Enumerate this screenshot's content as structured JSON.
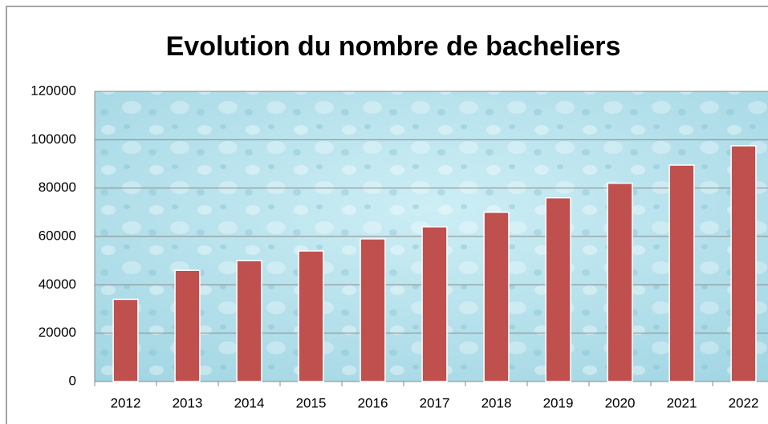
{
  "chart_data": {
    "type": "bar",
    "title": "Evolution du nombre de bacheliers",
    "categories": [
      "2012",
      "2013",
      "2014",
      "2015",
      "2016",
      "2017",
      "2018",
      "2019",
      "2020",
      "2021",
      "2022"
    ],
    "values": [
      34000,
      46000,
      50000,
      54000,
      59000,
      64000,
      70000,
      76000,
      82000,
      89500,
      97500
    ],
    "color": "#c0504d",
    "ylim": [
      0,
      120000
    ],
    "yticks": [
      0,
      20000,
      40000,
      60000,
      80000,
      100000,
      120000
    ],
    "grid": true
  }
}
